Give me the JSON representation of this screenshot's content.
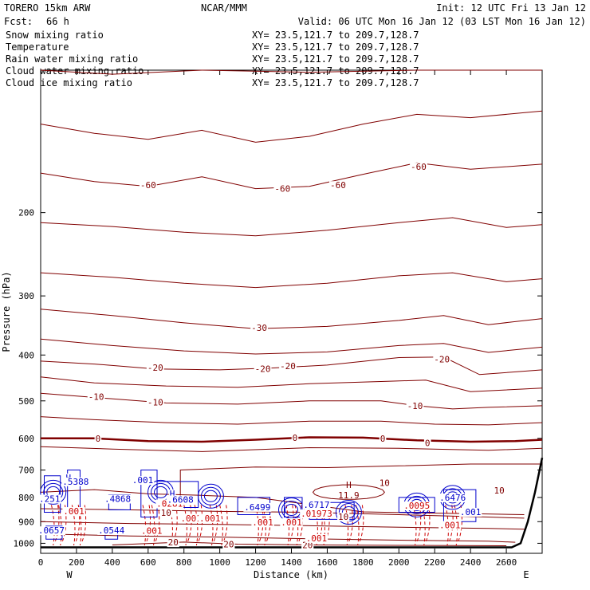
{
  "header": {
    "model": "TORERO  15km ARW",
    "center": "NCAR/MMM",
    "init": "Init: 12 UTC Fri 13 Jan 12",
    "fcst_label": "Fcst:",
    "fcst_value": "66 h",
    "valid": "Valid: 06 UTC Mon 16 Jan 12 (03 LST Mon 16 Jan 12)"
  },
  "legend": [
    {
      "name": "Snow mixing ratio",
      "color": "#000000",
      "xy": "XY=  23.5,121.7 to 209.7,128.7",
      "xy_color": "#000000"
    },
    {
      "name": "Temperature",
      "color": "#cc0000",
      "xy": "XY=  23.5,121.7 to 209.7,128.7",
      "xy_color": "#cc0000"
    },
    {
      "name": "Rain water mixing ratio",
      "color": "#cc0000",
      "xy": "XY=  23.5,121.7 to 209.7,128.7",
      "xy_color": "#cc0000"
    },
    {
      "name": "Cloud water mixing ratio",
      "color": "#0000cc",
      "xy": "XY=  23.5,121.7 to 209.7,128.7",
      "xy_color": "#0000cc"
    },
    {
      "name": "Cloud ice mixing ratio",
      "color": "#000000",
      "xy": "XY=  23.5,121.7 to 209.7,128.7",
      "xy_color": "#000000"
    }
  ],
  "colors": {
    "temperature": "#800000",
    "rain": "#cc0000",
    "cloud": "#0000cc",
    "terrain": "#000000"
  },
  "chart_data": {
    "type": "line",
    "title": "",
    "xlabel": "Distance (km)",
    "ylabel": "Pressure (hPa)",
    "xlim": [
      0,
      2800
    ],
    "ylim": [
      1050,
      100
    ],
    "y_scale": "log",
    "x_ticks": [
      0,
      200,
      400,
      600,
      800,
      1000,
      1200,
      1400,
      1600,
      1800,
      2000,
      2200,
      2400,
      2600
    ],
    "y_ticks": [
      200,
      300,
      400,
      500,
      600,
      700,
      800,
      900,
      1000
    ],
    "x_end_labels": {
      "left": "W",
      "right": "E"
    },
    "temperature_contour_labels": [
      {
        "label": "-60",
        "x": 600,
        "p": 175
      },
      {
        "label": "-60",
        "x": 1350,
        "p": 178
      },
      {
        "label": "-60",
        "x": 1660,
        "p": 175
      },
      {
        "label": "-60",
        "x": 2110,
        "p": 160
      },
      {
        "label": "-30",
        "x": 1220,
        "p": 350
      },
      {
        "label": "-20",
        "x": 640,
        "p": 425
      },
      {
        "label": "-20",
        "x": 1240,
        "p": 428
      },
      {
        "label": "-20",
        "x": 1380,
        "p": 422
      },
      {
        "label": "-20",
        "x": 2240,
        "p": 408
      },
      {
        "label": "-10",
        "x": 310,
        "p": 490
      },
      {
        "label": "-10",
        "x": 640,
        "p": 503
      },
      {
        "label": "-10",
        "x": 2090,
        "p": 512
      },
      {
        "label": "0",
        "x": 320,
        "p": 601
      },
      {
        "label": "0",
        "x": 1420,
        "p": 598
      },
      {
        "label": "0",
        "x": 1910,
        "p": 601
      },
      {
        "label": "0",
        "x": 2160,
        "p": 614
      },
      {
        "label": "10",
        "x": 1920,
        "p": 745
      },
      {
        "label": "10",
        "x": 2560,
        "p": 773
      },
      {
        "label": "10",
        "x": 700,
        "p": 862
      },
      {
        "label": "10",
        "x": 1690,
        "p": 878
      },
      {
        "label": "20",
        "x": 740,
        "p": 995
      },
      {
        "label": "20",
        "x": 1050,
        "p": 1005
      },
      {
        "label": "20",
        "x": 1490,
        "p": 1008
      }
    ],
    "temperature_extrema": [
      {
        "label": "H",
        "value": "11.9",
        "x": 1720,
        "p": 770
      }
    ],
    "rain_labels": [
      {
        "text": ".001",
        "x": 185,
        "p": 855
      },
      {
        "text": ".001",
        "x": 620,
        "p": 940
      },
      {
        "text": ".001",
        "x": 840,
        "p": 885
      },
      {
        "text": ".001",
        "x": 945,
        "p": 885
      },
      {
        "text": ".001",
        "x": 1240,
        "p": 903
      },
      {
        "text": ".001",
        "x": 1400,
        "p": 903
      },
      {
        "text": ".001",
        "x": 1540,
        "p": 975
      },
      {
        "text": ".001",
        "x": 2285,
        "p": 915
      },
      {
        "text": ".0095",
        "x": 2100,
        "p": 832
      },
      {
        "text": ".0281",
        "x": 720,
        "p": 824
      },
      {
        "text": ".01973",
        "x": 1540,
        "p": 865
      }
    ],
    "cloud_labels": [
      {
        "text": "H",
        "x": 155,
        "p": 726
      },
      {
        "text": ".5388",
        "x": 195,
        "p": 740
      },
      {
        "text": ".001",
        "x": 570,
        "p": 735
      },
      {
        "text": "H",
        "x": 735,
        "p": 785
      },
      {
        "text": ".6608",
        "x": 780,
        "p": 808
      },
      {
        "text": ".4868",
        "x": 430,
        "p": 805
      },
      {
        "text": ".251",
        "x": 50,
        "p": 805
      },
      {
        "text": ".6499",
        "x": 1210,
        "p": 838
      },
      {
        "text": ".6717",
        "x": 1540,
        "p": 828
      },
      {
        "text": ".6476",
        "x": 2300,
        "p": 800
      },
      {
        "text": ".0657",
        "x": 60,
        "p": 939
      },
      {
        "text": ".0544",
        "x": 395,
        "p": 938
      },
      {
        "text": ".001",
        "x": 2400,
        "p": 858
      }
    ]
  }
}
